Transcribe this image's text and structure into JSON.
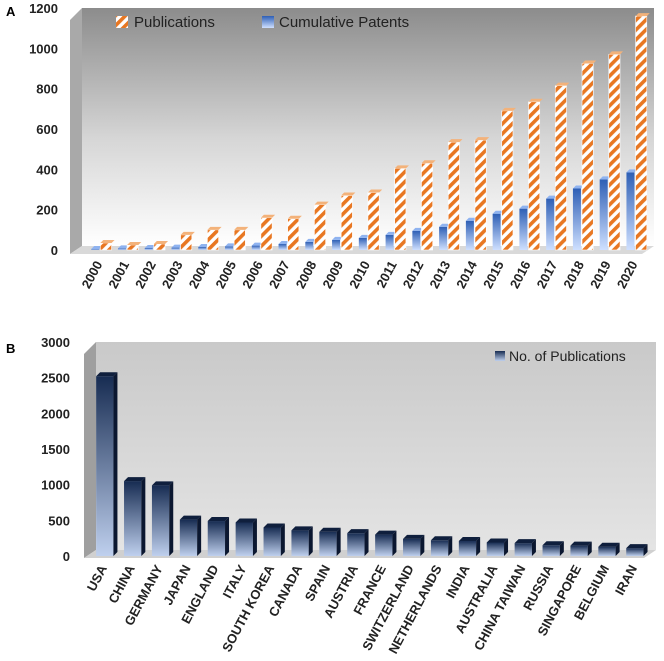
{
  "chart_data": [
    {
      "panel_label": "A",
      "type": "bar",
      "categories": [
        "2000",
        "2001",
        "2002",
        "2003",
        "2004",
        "2005",
        "2006",
        "2007",
        "2008",
        "2009",
        "2010",
        "2011",
        "2012",
        "2013",
        "2014",
        "2015",
        "2016",
        "2017",
        "2018",
        "2019",
        "2020"
      ],
      "series": [
        {
          "name": "Publications",
          "values": [
            35,
            25,
            30,
            75,
            100,
            100,
            160,
            155,
            225,
            270,
            285,
            405,
            430,
            535,
            545,
            690,
            735,
            815,
            925,
            970,
            1160
          ],
          "color": "#E87722"
        },
        {
          "name": "Cumulative Patents",
          "values": [
            5,
            8,
            10,
            12,
            15,
            18,
            22,
            30,
            40,
            50,
            60,
            75,
            95,
            115,
            145,
            180,
            205,
            255,
            305,
            350,
            385
          ],
          "color": "#4A7FD4"
        }
      ],
      "ylim": [
        0,
        1200
      ],
      "yticks": [
        0,
        200,
        400,
        600,
        800,
        1000,
        1200
      ],
      "grid": false,
      "legend_position": "top-left"
    },
    {
      "panel_label": "B",
      "type": "bar",
      "categories": [
        "USA",
        "CHINA",
        "GERMANY",
        "JAPAN",
        "ENGLAND",
        "ITALY",
        "SOUTH KOREA",
        "CANADA",
        "SPAIN",
        "AUSTRIA",
        "FRANCE",
        "SWITZERLAND",
        "NETHERLANDS",
        "INDIA",
        "AUSTRALIA",
        "CHINA TAIWAN",
        "RUSSIA",
        "SINGAPORE",
        "BELGIUM",
        "IRAN"
      ],
      "series": [
        {
          "name": "No. of Publications",
          "values": [
            2520,
            1050,
            990,
            510,
            490,
            470,
            400,
            360,
            340,
            320,
            300,
            240,
            220,
            210,
            190,
            180,
            150,
            145,
            130,
            110
          ],
          "color": "#1F3A66"
        }
      ],
      "ylim": [
        0,
        3000
      ],
      "yticks": [
        0,
        500,
        1000,
        1500,
        2000,
        2500,
        3000
      ],
      "grid": false,
      "legend_position": "top-right"
    }
  ]
}
